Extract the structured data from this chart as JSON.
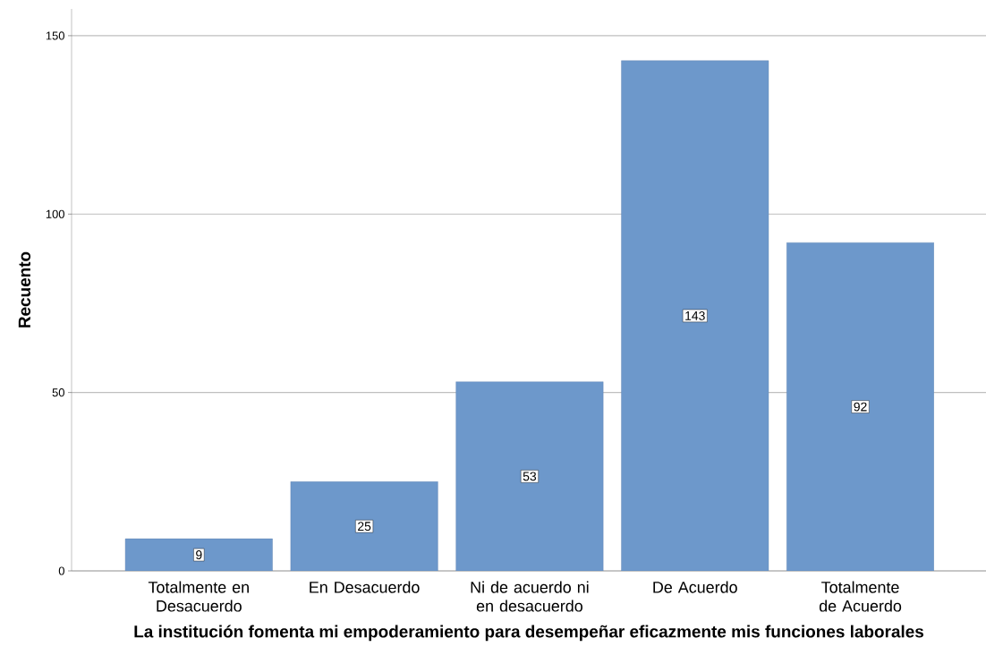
{
  "chart_data": {
    "type": "bar",
    "xlabel": "La institución fomenta mi empoderamiento para desempeñar eficazmente mis funciones laborales",
    "ylabel": "Recuento",
    "categories": [
      "Totalmente en Desacuerdo",
      "En Desacuerdo",
      "Ni de acuerdo ni en desacuerdo",
      "De Acuerdo",
      "Totalmente de Acuerdo"
    ],
    "values": [
      9,
      25,
      53,
      143,
      92
    ],
    "color": "#6d98cb",
    "ylim": [
      0,
      157.5
    ],
    "yticks": [
      0,
      50,
      100,
      150
    ],
    "grid": "y",
    "data_labels": true
  }
}
